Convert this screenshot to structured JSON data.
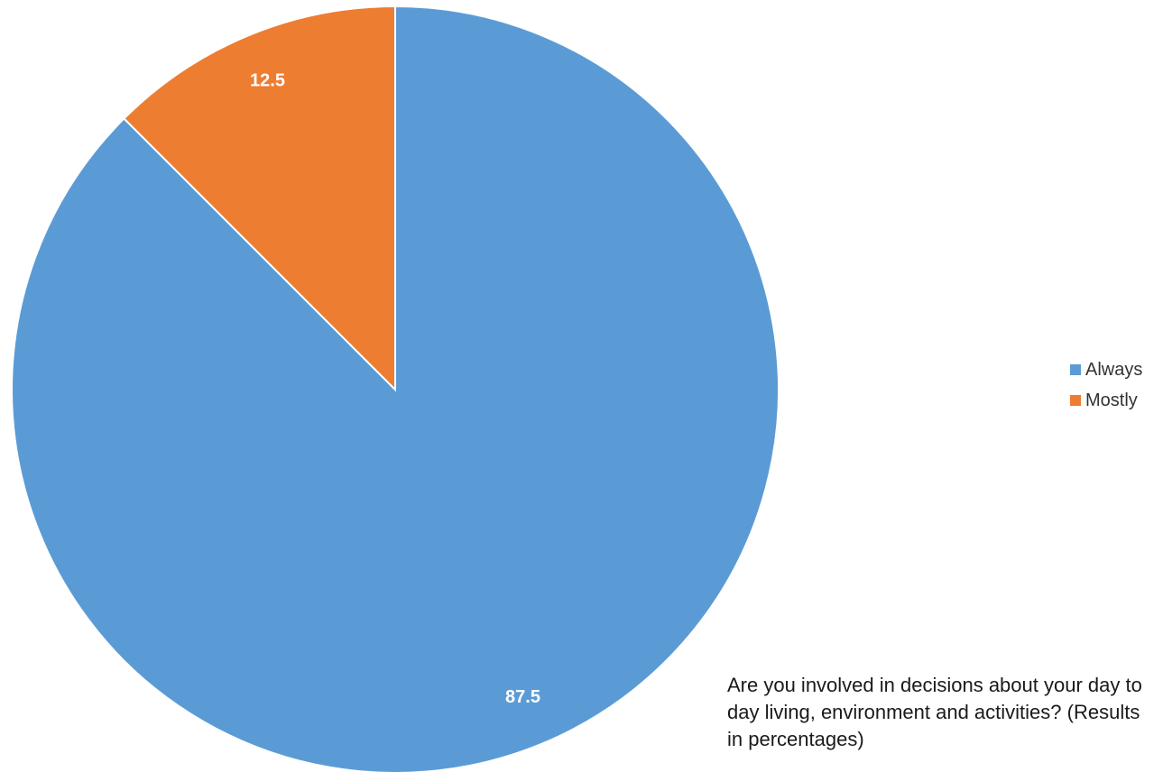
{
  "chart_data": {
    "type": "pie",
    "title": "",
    "categories": [
      "Always",
      "Mostly"
    ],
    "values": [
      87.5,
      12.5
    ],
    "data_labels": [
      "87.5",
      "12.5"
    ],
    "colors": [
      "#5B9BD5",
      "#ED7D31"
    ],
    "legend_placement": "right",
    "caption": "Are you involved in decisions about your day to day living, environment and activities? (Results in percentages)"
  }
}
